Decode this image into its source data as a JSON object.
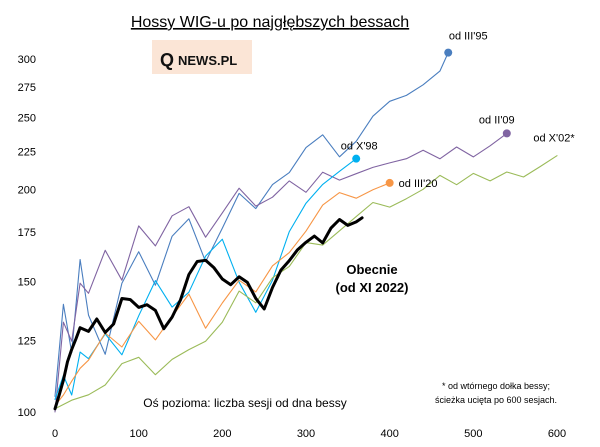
{
  "chart_data": {
    "type": "line",
    "title": "Hossy WIG-u po najgłębszych bessach",
    "xlabel": "Oś pozioma: liczba sesji od dna bessy",
    "ylabel": "",
    "xlim": [
      0,
      600
    ],
    "ylim": [
      100,
      310
    ],
    "y_scale": "log",
    "x_ticks": [
      "0",
      "100",
      "200",
      "300",
      "400",
      "500",
      "600"
    ],
    "y_ticks": [
      "100",
      "125",
      "150",
      "175",
      "200",
      "225",
      "250",
      "275",
      "300"
    ],
    "grid": false,
    "series": [
      {
        "name": "od III'95",
        "color": "#4a7ebf",
        "x": [
          0,
          10,
          20,
          30,
          40,
          60,
          80,
          100,
          120,
          140,
          160,
          180,
          200,
          220,
          240,
          260,
          280,
          300,
          320,
          340,
          360,
          380,
          400,
          420,
          440,
          460,
          470
        ],
        "y": [
          105,
          140,
          120,
          160,
          135,
          120,
          150,
          165,
          148,
          172,
          182,
          160,
          178,
          198,
          188,
          202,
          210,
          228,
          238,
          222,
          232,
          250,
          262,
          268,
          278,
          290,
          306
        ]
      },
      {
        "name": "od II'09",
        "color": "#8064a2",
        "x": [
          0,
          10,
          20,
          30,
          40,
          60,
          80,
          100,
          120,
          140,
          160,
          180,
          200,
          220,
          240,
          260,
          280,
          300,
          320,
          340,
          360,
          380,
          400,
          420,
          440,
          460,
          480,
          500,
          520,
          540
        ],
        "y": [
          100,
          132,
          125,
          150,
          145,
          165,
          150,
          178,
          168,
          185,
          190,
          172,
          185,
          200,
          190,
          196,
          206,
          198,
          210,
          205,
          210,
          215,
          218,
          220,
          225,
          219,
          228,
          222,
          230,
          238
        ]
      },
      {
        "name": "od X'98",
        "color": "#00b0f0",
        "x": [
          0,
          10,
          20,
          30,
          40,
          60,
          80,
          100,
          120,
          140,
          160,
          180,
          200,
          220,
          240,
          260,
          280,
          300,
          320,
          340,
          360
        ],
        "y": [
          104,
          112,
          105,
          120,
          118,
          128,
          120,
          135,
          150,
          138,
          145,
          163,
          172,
          150,
          136,
          150,
          175,
          192,
          204,
          212,
          220
        ]
      },
      {
        "name": "od III'20",
        "color": "#f79646",
        "x": [
          0,
          10,
          20,
          30,
          40,
          60,
          80,
          100,
          120,
          140,
          160,
          180,
          200,
          220,
          240,
          260,
          280,
          300,
          320,
          340,
          360,
          380,
          400
        ],
        "y": [
          102,
          105,
          110,
          115,
          118,
          128,
          122,
          132,
          125,
          135,
          145,
          130,
          140,
          150,
          145,
          158,
          165,
          176,
          190,
          197,
          194,
          200,
          204
        ]
      },
      {
        "name": "od X'02*",
        "color": "#9bbb59",
        "x": [
          0,
          20,
          40,
          60,
          80,
          100,
          120,
          140,
          160,
          180,
          200,
          220,
          240,
          260,
          280,
          300,
          320,
          340,
          360,
          380,
          400,
          420,
          440,
          460,
          480,
          500,
          520,
          540,
          560,
          580,
          600
        ],
        "y": [
          101,
          104,
          106,
          109,
          116,
          118,
          112,
          118,
          122,
          125,
          132,
          145,
          140,
          152,
          158,
          170,
          168,
          175,
          183,
          192,
          190,
          195,
          200,
          208,
          202,
          210,
          206,
          212,
          208,
          214,
          222
        ]
      },
      {
        "name": "Obecnie",
        "color": "#000000",
        "x": [
          0,
          5,
          10,
          15,
          20,
          25,
          30,
          40,
          50,
          60,
          70,
          80,
          90,
          100,
          110,
          120,
          130,
          140,
          150,
          160,
          170,
          180,
          190,
          200,
          210,
          220,
          230,
          240,
          250,
          260,
          270,
          280,
          290,
          300,
          310,
          320,
          330,
          340,
          350,
          360,
          367
        ],
        "y": [
          101,
          105,
          110,
          117,
          122,
          126,
          130,
          128,
          133,
          128,
          132,
          143,
          142,
          138,
          139,
          137,
          130,
          135,
          142,
          153,
          159,
          160,
          157,
          152,
          149,
          152,
          149,
          142,
          138,
          148,
          156,
          160,
          165,
          169,
          173,
          170,
          178,
          182,
          178,
          180,
          183
        ]
      }
    ],
    "markers": [
      {
        "series": "od III'95",
        "x": 470,
        "y": 306,
        "label": "od III'95",
        "color": "#4a7ebf"
      },
      {
        "series": "od II'09",
        "x": 540,
        "y": 238,
        "label": "od II'09",
        "color": "#8064a2"
      },
      {
        "series": "od X'98",
        "x": 360,
        "y": 220,
        "label": "od X'98",
        "color": "#00b0f0"
      },
      {
        "series": "od III'20",
        "x": 400,
        "y": 204,
        "label": "od III'20",
        "color": "#f79646"
      },
      {
        "series": "od X'02*",
        "x": 600,
        "y": 222,
        "label": "od X'02*",
        "color": "#9bbb59"
      }
    ],
    "annotation": {
      "line1": "Obecnie",
      "line2": "(od XI 2022)"
    },
    "footnote": {
      "line1": "* od wtórnego dołka bessy;",
      "line2": "ścieżka ucięta po 600 sesjach."
    }
  },
  "logo": {
    "big": "Q",
    "small": "NEWS.PL",
    "bg": "#fbe5d6"
  }
}
